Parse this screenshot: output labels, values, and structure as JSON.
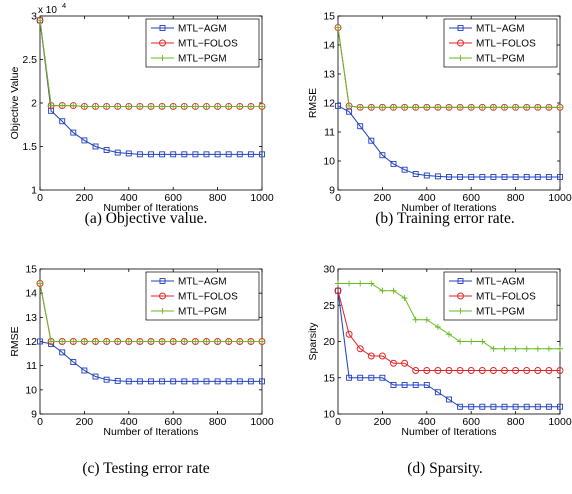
{
  "colors": {
    "agm": "#1f3fbf",
    "folos": "#e02020",
    "pgm": "#66bb22",
    "axis": "#000000"
  },
  "series_names": [
    "MTL−AGM",
    "MTL−FOLOS",
    "MTL−PGM"
  ],
  "chart_data": [
    {
      "type": "line",
      "caption": "(a)  Objective value.",
      "xlabel": "Number of Iterations",
      "ylabel": "Objective Value",
      "y_exponent_label": "x 10",
      "y_exponent_power": "4",
      "xlim": [
        0,
        1000
      ],
      "ylim": [
        1,
        3
      ],
      "xticks": [
        0,
        200,
        400,
        600,
        800,
        1000
      ],
      "yticks": [
        1,
        1.5,
        2,
        2.5,
        3
      ],
      "ytick_labels": [
        "1",
        "1.5",
        "2",
        "2.5",
        "3"
      ],
      "legend_position": "top-right",
      "grid": false,
      "x": [
        0,
        50,
        100,
        150,
        200,
        250,
        300,
        350,
        400,
        450,
        500,
        550,
        600,
        650,
        700,
        750,
        800,
        850,
        900,
        950,
        1000
      ],
      "series": [
        {
          "name": "MTL−AGM",
          "values": [
            2.95,
            1.91,
            1.79,
            1.66,
            1.57,
            1.5,
            1.46,
            1.43,
            1.42,
            1.41,
            1.41,
            1.41,
            1.41,
            1.41,
            1.41,
            1.41,
            1.41,
            1.41,
            1.41,
            1.41,
            1.41
          ]
        },
        {
          "name": "MTL−FOLOS",
          "values": [
            2.95,
            1.97,
            1.97,
            1.97,
            1.96,
            1.96,
            1.96,
            1.96,
            1.96,
            1.96,
            1.96,
            1.96,
            1.96,
            1.96,
            1.96,
            1.96,
            1.96,
            1.96,
            1.96,
            1.96,
            1.96
          ]
        },
        {
          "name": "MTL−PGM",
          "values": [
            2.95,
            1.97,
            1.97,
            1.97,
            1.96,
            1.96,
            1.96,
            1.96,
            1.96,
            1.96,
            1.96,
            1.96,
            1.96,
            1.96,
            1.96,
            1.96,
            1.96,
            1.96,
            1.96,
            1.96,
            1.96
          ]
        }
      ]
    },
    {
      "type": "line",
      "caption": "(b)  Training error rate.",
      "xlabel": "Number of Iterations",
      "ylabel": "RMSE",
      "xlim": [
        0,
        1000
      ],
      "ylim": [
        9,
        15
      ],
      "xticks": [
        0,
        200,
        400,
        600,
        800,
        1000
      ],
      "yticks": [
        9,
        10,
        11,
        12,
        13,
        14,
        15
      ],
      "ytick_labels": [
        "9",
        "10",
        "11",
        "12",
        "13",
        "14",
        "15"
      ],
      "legend_position": "top-right",
      "grid": false,
      "x": [
        0,
        50,
        100,
        150,
        200,
        250,
        300,
        350,
        400,
        450,
        500,
        550,
        600,
        650,
        700,
        750,
        800,
        850,
        900,
        950,
        1000
      ],
      "series": [
        {
          "name": "MTL−AGM",
          "values": [
            11.9,
            11.7,
            11.2,
            10.7,
            10.2,
            9.9,
            9.7,
            9.55,
            9.5,
            9.47,
            9.45,
            9.45,
            9.45,
            9.45,
            9.45,
            9.45,
            9.45,
            9.45,
            9.45,
            9.45,
            9.45
          ]
        },
        {
          "name": "MTL−FOLOS",
          "values": [
            14.6,
            11.9,
            11.85,
            11.85,
            11.85,
            11.85,
            11.85,
            11.85,
            11.85,
            11.85,
            11.85,
            11.85,
            11.85,
            11.85,
            11.85,
            11.85,
            11.85,
            11.85,
            11.85,
            11.85,
            11.85
          ]
        },
        {
          "name": "MTL−PGM",
          "values": [
            14.6,
            11.9,
            11.85,
            11.85,
            11.85,
            11.85,
            11.85,
            11.85,
            11.85,
            11.85,
            11.85,
            11.85,
            11.85,
            11.85,
            11.85,
            11.85,
            11.85,
            11.85,
            11.85,
            11.85,
            11.85
          ]
        }
      ]
    },
    {
      "type": "line",
      "caption": "(c)  Testing error rate",
      "xlabel": "Number of Iterations",
      "ylabel": "RMSE",
      "xlim": [
        0,
        1000
      ],
      "ylim": [
        9,
        15
      ],
      "xticks": [
        0,
        200,
        400,
        600,
        800,
        1000
      ],
      "yticks": [
        9,
        10,
        11,
        12,
        13,
        14,
        15
      ],
      "ytick_labels": [
        "9",
        "10",
        "11",
        "12",
        "13",
        "14",
        "15"
      ],
      "legend_position": "top-right",
      "grid": false,
      "x": [
        0,
        50,
        100,
        150,
        200,
        250,
        300,
        350,
        400,
        450,
        500,
        550,
        600,
        650,
        700,
        750,
        800,
        850,
        900,
        950,
        1000
      ],
      "series": [
        {
          "name": "MTL−AGM",
          "values": [
            12.0,
            11.9,
            11.55,
            11.15,
            10.8,
            10.55,
            10.42,
            10.37,
            10.35,
            10.35,
            10.35,
            10.35,
            10.35,
            10.35,
            10.35,
            10.35,
            10.35,
            10.35,
            10.35,
            10.35,
            10.35
          ]
        },
        {
          "name": "MTL−FOLOS",
          "values": [
            14.4,
            12.0,
            12.0,
            12.0,
            12.0,
            12.0,
            12.0,
            12.0,
            12.0,
            12.0,
            12.0,
            12.0,
            12.0,
            12.0,
            12.0,
            12.0,
            12.0,
            12.0,
            12.0,
            12.0,
            12.0
          ]
        },
        {
          "name": "MTL−PGM",
          "values": [
            14.4,
            12.0,
            12.0,
            12.0,
            12.0,
            12.0,
            12.0,
            12.0,
            12.0,
            12.0,
            12.0,
            12.0,
            12.0,
            12.0,
            12.0,
            12.0,
            12.0,
            12.0,
            12.0,
            12.0,
            12.0
          ]
        }
      ]
    },
    {
      "type": "line",
      "caption": "(d)  Sparsity.",
      "xlabel": "Number of Iterations",
      "ylabel": "Sparsity",
      "xlim": [
        0,
        1000
      ],
      "ylim": [
        10,
        30
      ],
      "xticks": [
        0,
        200,
        400,
        600,
        800,
        1000
      ],
      "yticks": [
        10,
        15,
        20,
        25,
        30
      ],
      "ytick_labels": [
        "10",
        "15",
        "20",
        "25",
        "30"
      ],
      "legend_position": "top-right",
      "grid": false,
      "x": [
        0,
        50,
        100,
        150,
        200,
        250,
        300,
        350,
        400,
        450,
        500,
        550,
        600,
        650,
        700,
        750,
        800,
        850,
        900,
        950,
        1000
      ],
      "series": [
        {
          "name": "MTL−AGM",
          "values": [
            27,
            15,
            15,
            15,
            15,
            14,
            14,
            14,
            14,
            13,
            12,
            11,
            11,
            11,
            11,
            11,
            11,
            11,
            11,
            11,
            11
          ]
        },
        {
          "name": "MTL−FOLOS",
          "values": [
            27,
            21,
            19,
            18,
            18,
            17,
            17,
            16,
            16,
            16,
            16,
            16,
            16,
            16,
            16,
            16,
            16,
            16,
            16,
            16,
            16
          ]
        },
        {
          "name": "MTL−PGM",
          "values": [
            28,
            28,
            28,
            28,
            27,
            27,
            26,
            23,
            23,
            22,
            21,
            20,
            20,
            20,
            19,
            19,
            19,
            19,
            19,
            19,
            19
          ]
        }
      ]
    }
  ]
}
